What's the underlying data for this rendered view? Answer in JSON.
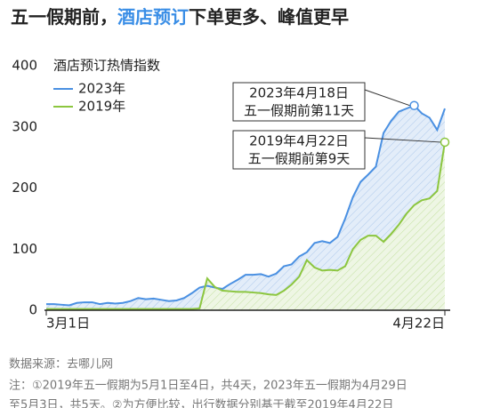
{
  "chart_data": {
    "type": "line",
    "title_parts": [
      "五一假期前，",
      "酒店预订",
      "下单更多、峰值更早"
    ],
    "title_highlight_color": "#3a8ee6",
    "y_label": "酒店预订热情指数",
    "categories": [
      "3月1日",
      null,
      null,
      null,
      null,
      null,
      null,
      null,
      null,
      null,
      null,
      null,
      null,
      null,
      null,
      null,
      null,
      null,
      null,
      null,
      null,
      null,
      null,
      null,
      null,
      null,
      null,
      null,
      null,
      null,
      null,
      null,
      null,
      null,
      null,
      null,
      null,
      null,
      null,
      null,
      null,
      null,
      null,
      null,
      null,
      null,
      null,
      null,
      null,
      null,
      null,
      null,
      "4月22日"
    ],
    "series": [
      {
        "name": "2023年",
        "color": "#4a90e2",
        "fill": "#dbe8f7",
        "values": [
          10,
          10,
          9,
          8,
          12,
          13,
          13,
          10,
          12,
          11,
          12,
          15,
          20,
          18,
          19,
          17,
          15,
          16,
          20,
          28,
          37,
          40,
          37,
          35,
          43,
          50,
          58,
          58,
          59,
          55,
          60,
          72,
          75,
          88,
          95,
          110,
          113,
          110,
          120,
          150,
          185,
          210,
          222,
          235,
          290,
          310,
          325,
          330,
          335,
          322,
          315,
          295,
          330
        ]
      },
      {
        "name": "2019年",
        "color": "#8cc63f",
        "fill": "#e6f2d6",
        "values": [
          2,
          2,
          2,
          2,
          2,
          2,
          2,
          2,
          2,
          2,
          2,
          2,
          2,
          2,
          2,
          2,
          2,
          2,
          2,
          2,
          3,
          52,
          38,
          32,
          31,
          30,
          30,
          29,
          28,
          26,
          25,
          32,
          42,
          55,
          82,
          70,
          65,
          66,
          65,
          72,
          100,
          115,
          122,
          122,
          112,
          125,
          140,
          158,
          172,
          180,
          183,
          195,
          275
        ]
      }
    ],
    "ylim": [
      0,
      400
    ],
    "yticks": [
      0,
      100,
      200,
      300,
      400
    ],
    "legend": "top-left",
    "annotations": [
      [
        "2023年4月18日",
        "五一假期前第11天"
      ],
      [
        "2019年4月22日",
        "五一假期前第9天"
      ]
    ],
    "source": "数据来源：去哪儿网",
    "note": [
      "注：①2019年五一假期为5月1日至4日，共4天，2023年五一假期为4月29日",
      "至5月3日，共5天。②为方便比较，出行数据分别基于截至2019年4月22日"
    ]
  }
}
